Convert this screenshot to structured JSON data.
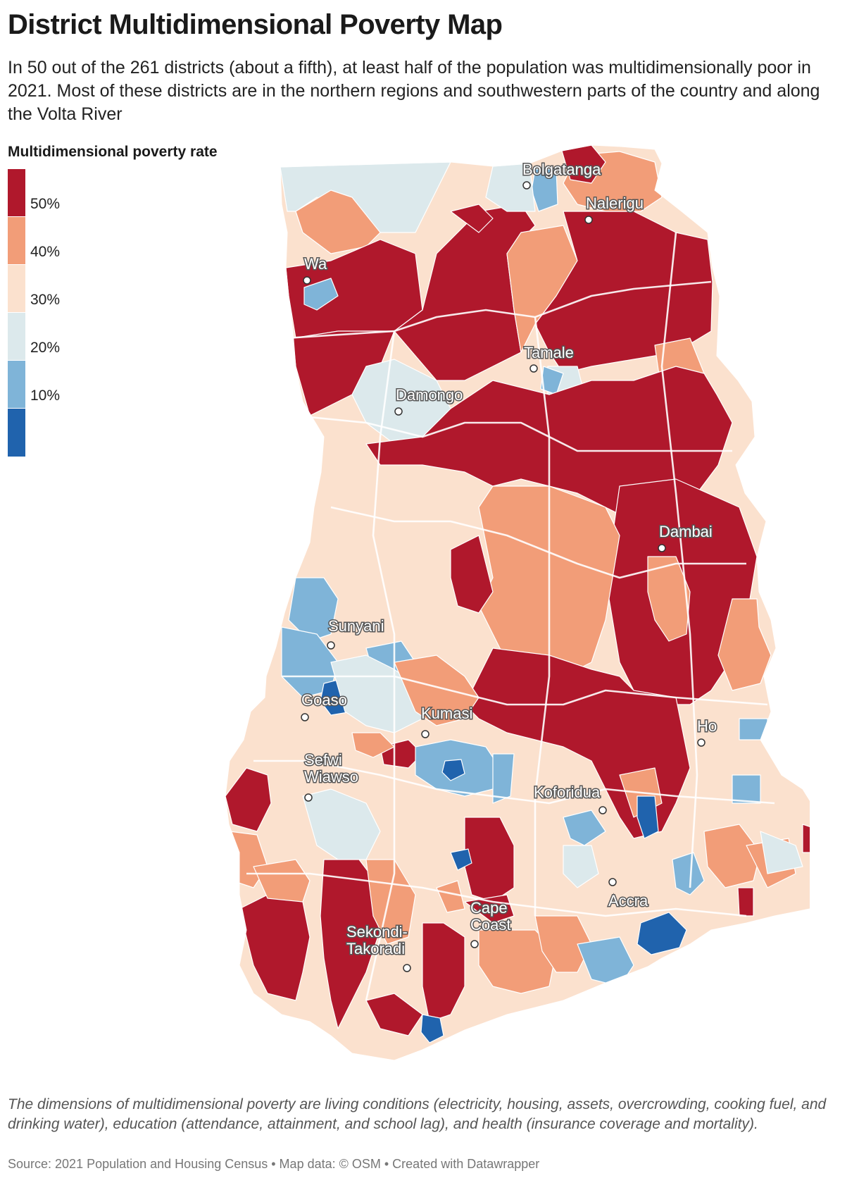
{
  "title": "District Multidimensional Poverty Map",
  "subtitle": "In 50 out of the 261 districts (about a fifth), at least half of the population was multidimensionally poor in 2021. Most of these districts are in the northern regions and southwestern parts of the country and along the Volta River",
  "legend": {
    "title": "Multidimensional poverty rate",
    "bins": [
      {
        "color": "#b0182c",
        "label": "50%"
      },
      {
        "color": "#f29d78",
        "label": "40%"
      },
      {
        "color": "#fbe1ce",
        "label": "30%"
      },
      {
        "color": "#dce9ec",
        "label": "20%"
      },
      {
        "color": "#7fb4d8",
        "label": "10%"
      },
      {
        "color": "#2063ad",
        "label": ""
      }
    ]
  },
  "cities": [
    {
      "name": "Bolgatanga",
      "lines": [
        "Bolgatanga"
      ]
    },
    {
      "name": "Nalerigu",
      "lines": [
        "Nalerigu"
      ]
    },
    {
      "name": "Wa",
      "lines": [
        "Wa"
      ]
    },
    {
      "name": "Tamale",
      "lines": [
        "Tamale"
      ]
    },
    {
      "name": "Damongo",
      "lines": [
        "Damongo"
      ]
    },
    {
      "name": "Dambai",
      "lines": [
        "Dambai"
      ]
    },
    {
      "name": "Sunyani",
      "lines": [
        "Sunyani"
      ]
    },
    {
      "name": "Goaso",
      "lines": [
        "Goaso"
      ]
    },
    {
      "name": "Kumasi",
      "lines": [
        "Kumasi"
      ]
    },
    {
      "name": "Ho",
      "lines": [
        "Ho"
      ]
    },
    {
      "name": "Sefwi Wiawso",
      "lines": [
        "Sefwi",
        "Wiawso"
      ]
    },
    {
      "name": "Koforidua",
      "lines": [
        "Koforidua"
      ]
    },
    {
      "name": "Accra",
      "lines": [
        "Accra"
      ]
    },
    {
      "name": "Cape Coast",
      "lines": [
        "Cape",
        "Coast"
      ]
    },
    {
      "name": "Sekondi-Takoradi",
      "lines": [
        "Sekondi-",
        "Takoradi"
      ]
    }
  ],
  "notes": "The dimensions of multidimensional poverty are living conditions (electricity, housing, assets, overcrowding, cooking fuel, and drinking water), education (attendance, attainment, and school lag), and health (insurance coverage and mortality).",
  "source": "Source: 2021 Population and Housing Census • Map data: © OSM  • Created with Datawrapper"
}
